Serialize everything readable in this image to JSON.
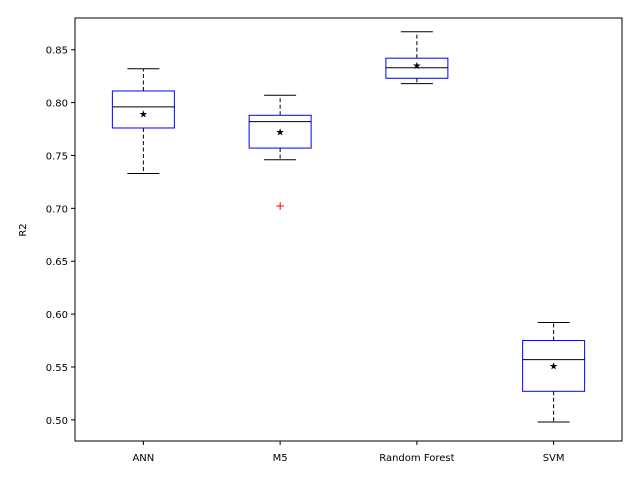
{
  "chart_data": {
    "type": "boxplot",
    "title": "",
    "xlabel": "",
    "ylabel": "R2",
    "ylim": [
      0.48,
      0.88
    ],
    "yticks": [
      0.5,
      0.55,
      0.6,
      0.65,
      0.7,
      0.75,
      0.8,
      0.85
    ],
    "ytick_labels": [
      "0.50",
      "0.55",
      "0.60",
      "0.65",
      "0.70",
      "0.75",
      "0.80",
      "0.85"
    ],
    "categories": [
      "ANN",
      "M5",
      "Random Forest",
      "SVM"
    ],
    "boxes": [
      {
        "category": "ANN",
        "whisker_low": 0.733,
        "q1": 0.776,
        "median": 0.796,
        "q3": 0.811,
        "whisker_high": 0.832,
        "mean": 0.789,
        "outliers": []
      },
      {
        "category": "M5",
        "whisker_low": 0.746,
        "q1": 0.757,
        "median": 0.782,
        "q3": 0.788,
        "whisker_high": 0.807,
        "mean": 0.772,
        "outliers": [
          0.702
        ]
      },
      {
        "category": "Random Forest",
        "whisker_low": 0.818,
        "q1": 0.823,
        "median": 0.833,
        "q3": 0.842,
        "whisker_high": 0.867,
        "mean": 0.835,
        "outliers": []
      },
      {
        "category": "SVM",
        "whisker_low": 0.498,
        "q1": 0.527,
        "median": 0.557,
        "q3": 0.575,
        "whisker_high": 0.592,
        "mean": 0.551,
        "outliers": []
      }
    ],
    "grid": false,
    "colors": {
      "box": "#0000ff",
      "median": "#000000",
      "whisker": "#000000",
      "mean_marker": "#000000",
      "outlier": "#ff0000"
    },
    "mean_marker_symbol": "★",
    "outlier_marker_symbol": "+"
  }
}
